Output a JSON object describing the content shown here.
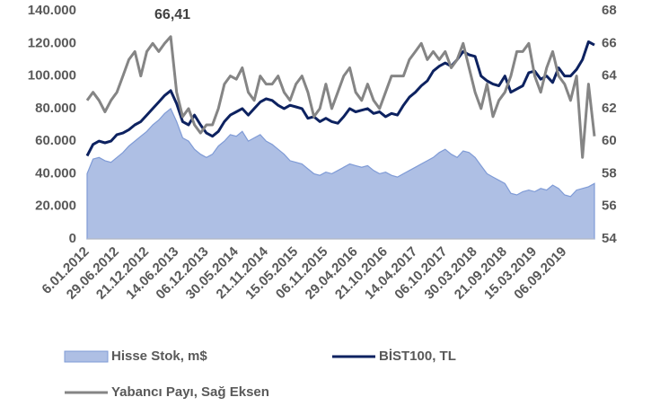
{
  "chart_data": {
    "type": "line",
    "categories": [
      "6.01.2012",
      null,
      null,
      null,
      null,
      "29.06.2012",
      null,
      null,
      null,
      null,
      "21.12.2012",
      null,
      null,
      null,
      null,
      "14.06.2013",
      null,
      null,
      null,
      null,
      "06.12.2013",
      null,
      null,
      null,
      null,
      "30.05.2014",
      null,
      null,
      null,
      null,
      "21.11.2014",
      null,
      null,
      null,
      null,
      "15.05.2015",
      null,
      null,
      null,
      null,
      "06.11.2015",
      null,
      null,
      null,
      null,
      "29.04.2016",
      null,
      null,
      null,
      null,
      "21.10.2016",
      null,
      null,
      null,
      null,
      "14.04.2017",
      null,
      null,
      null,
      null,
      "06.10.2017",
      null,
      null,
      null,
      null,
      "30.03.2018",
      null,
      null,
      null,
      null,
      "21.09.2018",
      null,
      null,
      null,
      null,
      "15.03.2019",
      null,
      null,
      null,
      null,
      "06.09.2019",
      null,
      null,
      null,
      null,
      null
    ],
    "series": [
      {
        "name": "Hisse Stok, m$",
        "type": "area",
        "color": "#aebfe4",
        "axis": "y",
        "values": [
          40000,
          49000,
          50000,
          48000,
          47000,
          50000,
          53000,
          57000,
          60000,
          63000,
          66000,
          70000,
          73000,
          77000,
          80000,
          72000,
          62000,
          60000,
          55000,
          52000,
          50000,
          52000,
          57000,
          60000,
          64000,
          63000,
          66000,
          60000,
          62000,
          64000,
          60000,
          58000,
          55000,
          52000,
          48000,
          47000,
          46000,
          43000,
          40000,
          39000,
          41000,
          40000,
          42000,
          44000,
          46000,
          45000,
          44000,
          45000,
          42000,
          40000,
          41000,
          39000,
          38000,
          40000,
          42000,
          44000,
          46000,
          48000,
          50000,
          53000,
          55000,
          52000,
          50000,
          54000,
          53000,
          50000,
          45000,
          40000,
          38000,
          36000,
          34000,
          28000,
          27000,
          29000,
          30000,
          29000,
          31000,
          30000,
          33000,
          31000,
          27000,
          26000,
          30000,
          31000,
          32000,
          34000
        ]
      },
      {
        "name": "BİST100, TL",
        "type": "line",
        "color": "#0d2260",
        "axis": "y",
        "values": [
          51000,
          58000,
          60000,
          59000,
          60000,
          64000,
          65000,
          67000,
          70000,
          72000,
          76000,
          80000,
          84000,
          88000,
          91000,
          83000,
          72000,
          70000,
          76000,
          70000,
          65000,
          63000,
          66000,
          72000,
          76000,
          78000,
          80000,
          76000,
          80000,
          84000,
          86000,
          85000,
          82000,
          80000,
          82000,
          81000,
          80000,
          74000,
          75000,
          72000,
          74000,
          72000,
          71000,
          75000,
          80000,
          78000,
          79000,
          80000,
          77000,
          78000,
          75000,
          77000,
          76000,
          82000,
          87000,
          90000,
          94000,
          97000,
          103000,
          106000,
          108000,
          106000,
          110000,
          115000,
          113000,
          112000,
          100000,
          97000,
          95000,
          94000,
          100000,
          90000,
          92000,
          94000,
          102000,
          103000,
          98000,
          100000,
          96000,
          105000,
          100000,
          100000,
          104000,
          110000,
          121000,
          119000
        ]
      },
      {
        "name": "Yabancı Payı, Sağ Eksen",
        "type": "line",
        "color": "#858585",
        "axis": "y2",
        "values": [
          62.5,
          63,
          62.5,
          61.8,
          62.5,
          63,
          64,
          65,
          65.5,
          64,
          65.5,
          66,
          65.5,
          66,
          66.41,
          63,
          61.5,
          62,
          61,
          60.5,
          61,
          61,
          62,
          63.5,
          64,
          63.8,
          64.5,
          63,
          62.5,
          64,
          63.5,
          63.5,
          64,
          63,
          62.5,
          63.5,
          64,
          63,
          61.5,
          62,
          63.5,
          62,
          63,
          64,
          64.5,
          63,
          62.5,
          63.5,
          62.5,
          62,
          63,
          64,
          64,
          64,
          65,
          65.5,
          66,
          65,
          65.5,
          65,
          65.5,
          64.5,
          65,
          66,
          64.5,
          63,
          62,
          63.5,
          61.5,
          62.5,
          63,
          64,
          65.5,
          65.5,
          66,
          64,
          63,
          64.5,
          65.5,
          64,
          63.5,
          62.5,
          64,
          59,
          63.5,
          60.3
        ]
      }
    ],
    "annotations": [
      {
        "text": "66,41",
        "series": 2,
        "index": 14
      }
    ],
    "ylim": [
      0,
      140000
    ],
    "yticks": [
      {
        "value": 0,
        "label": "0"
      },
      {
        "value": 20000,
        "label": "20.000"
      },
      {
        "value": 40000,
        "label": "40.000"
      },
      {
        "value": 60000,
        "label": "60.000"
      },
      {
        "value": 80000,
        "label": "80.000"
      },
      {
        "value": 100000,
        "label": "100.000"
      },
      {
        "value": 120000,
        "label": "120.000"
      },
      {
        "value": 140000,
        "label": "140.000"
      }
    ],
    "y2lim": [
      54,
      68
    ],
    "y2ticks": [
      54,
      56,
      58,
      60,
      62,
      64,
      66,
      68
    ],
    "grid": false
  }
}
